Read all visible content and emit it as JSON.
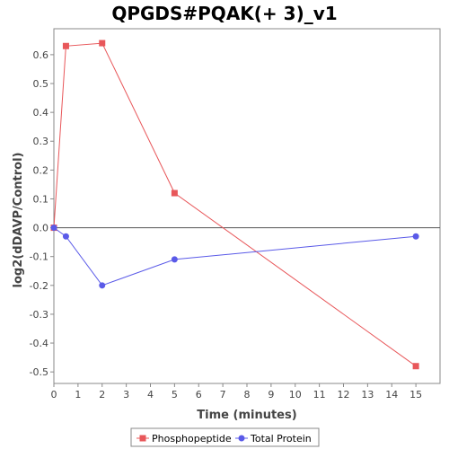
{
  "chart_data": {
    "type": "line",
    "title": "QPGDS#PQAK(+ 3)_v1",
    "xlabel": "Time (minutes)",
    "ylabel": "log2(dDAVP/Control)",
    "xlim": [
      0,
      16
    ],
    "ylim": [
      -0.54,
      0.69
    ],
    "x_ticks": [
      0,
      1,
      2,
      3,
      4,
      5,
      6,
      7,
      8,
      9,
      10,
      11,
      12,
      13,
      14,
      15
    ],
    "y_ticks": [
      -0.5,
      -0.4,
      -0.3,
      -0.2,
      -0.1,
      0.0,
      0.1,
      0.2,
      0.3,
      0.4,
      0.5,
      0.6
    ],
    "y_tick_labels": [
      "-0.5",
      "-0.4",
      "-0.3",
      "-0.2",
      "-0.1",
      "0.0",
      "0.1",
      "0.2",
      "0.3",
      "0.4",
      "0.5",
      "0.6"
    ],
    "zero_line": true,
    "grid": false,
    "legend_position": "bottom",
    "series": [
      {
        "name": "Phosphopeptide",
        "color": "#e8575a",
        "marker": "square",
        "x": [
          0,
          0.5,
          2,
          5,
          15
        ],
        "y": [
          0.0,
          0.63,
          0.64,
          0.12,
          -0.48
        ]
      },
      {
        "name": "Total Protein",
        "color": "#5a5ae8",
        "marker": "circle",
        "x": [
          0,
          0.5,
          2,
          5,
          15
        ],
        "y": [
          0.0,
          -0.03,
          -0.2,
          -0.11,
          -0.03
        ]
      }
    ]
  }
}
